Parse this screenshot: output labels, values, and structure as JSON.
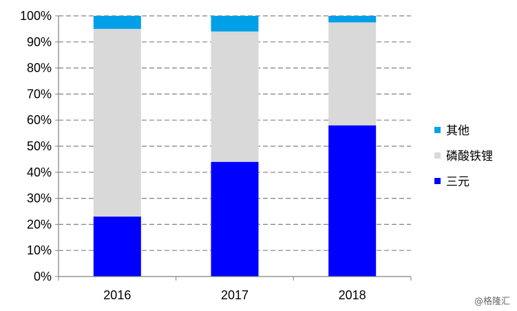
{
  "chart_data": {
    "type": "bar",
    "stacked": true,
    "categories": [
      "2016",
      "2017",
      "2018"
    ],
    "series": [
      {
        "name": "三元",
        "color": "#0000ff",
        "values": [
          23,
          44,
          58
        ]
      },
      {
        "name": "磷酸铁锂",
        "color": "#d9d9d9",
        "values": [
          72,
          50,
          39.5
        ]
      },
      {
        "name": "其他",
        "color": "#00a0e9",
        "values": [
          5,
          6,
          2.5
        ]
      }
    ],
    "ylim": [
      0,
      100
    ],
    "yticks": [
      "0%",
      "10%",
      "20%",
      "30%",
      "40%",
      "50%",
      "60%",
      "70%",
      "80%",
      "90%",
      "100%"
    ],
    "grid": true,
    "legend_placement": "right",
    "legend_order": [
      "其他",
      "磷酸铁锂",
      "三元"
    ]
  },
  "watermark": "@格隆汇"
}
